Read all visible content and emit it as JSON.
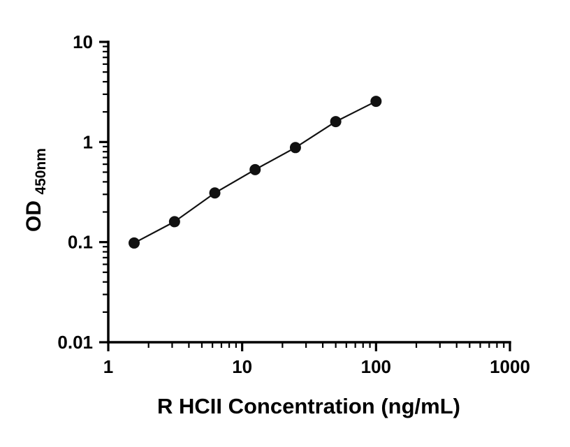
{
  "chart_data": {
    "type": "scatter",
    "title": "",
    "xlabel": "R HCII Concentration (ng/mL)",
    "ylabel_main": "OD",
    "ylabel_subscript": "450nm",
    "x_scale": "log",
    "y_scale": "log",
    "xlim": [
      1,
      1000
    ],
    "ylim": [
      0.01,
      10
    ],
    "x": [
      1.56,
      3.125,
      6.25,
      12.5,
      25,
      50,
      100
    ],
    "y": [
      0.098,
      0.16,
      0.31,
      0.53,
      0.88,
      1.6,
      2.55
    ],
    "x_tick_values": [
      1,
      10,
      100,
      1000
    ],
    "x_tick_labels": [
      "1",
      "10",
      "100",
      "1000"
    ],
    "y_tick_values": [
      10,
      1,
      0.1,
      0.01
    ],
    "y_tick_labels": [
      "10",
      "1",
      "0.1",
      "0.01"
    ],
    "minor_ticks": true,
    "grid": false,
    "legend": null,
    "axis_color": "#000000",
    "line_color": "#111111",
    "marker_color": "#111111",
    "background_color": "#ffffff"
  }
}
